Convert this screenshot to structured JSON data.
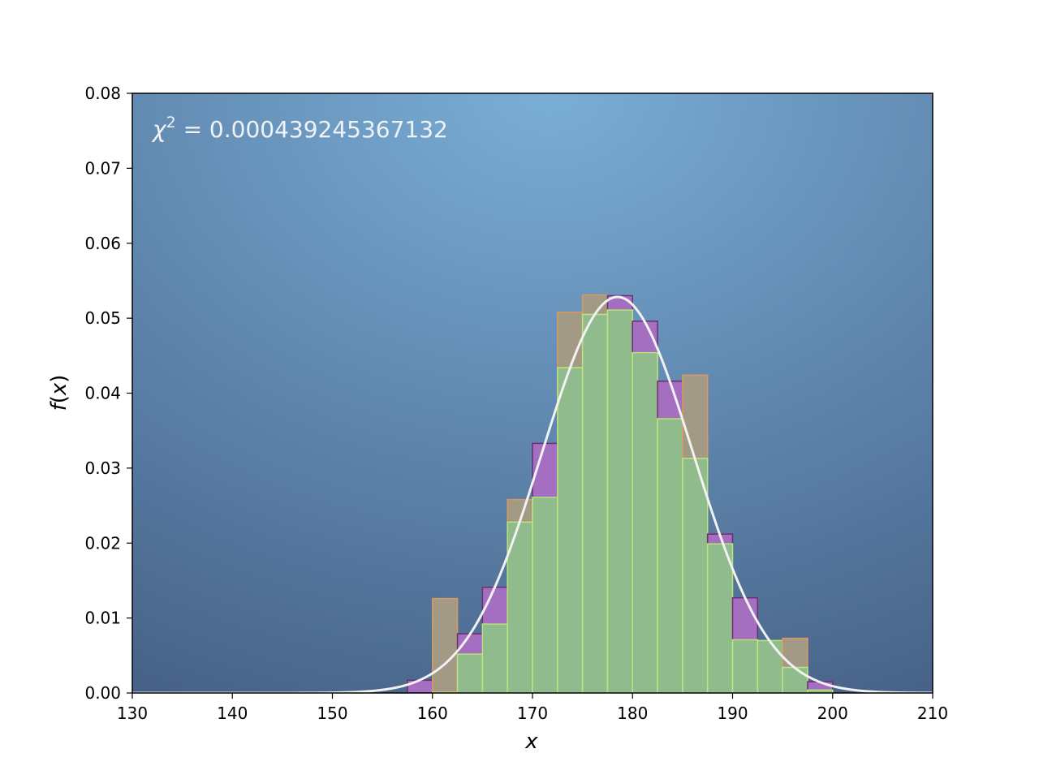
{
  "chart_data": {
    "type": "bar",
    "title": "",
    "annotation": {
      "prefix": "χ",
      "superscript": "2",
      "value_text": " = 0.000439245367132"
    },
    "xlabel": "x",
    "ylabel": {
      "func": "f",
      "paren_open": "(",
      "var": "x",
      "paren_close": ")"
    },
    "xlim": [
      130,
      210
    ],
    "ylim": [
      0,
      0.08
    ],
    "xticks": [
      130,
      140,
      150,
      160,
      170,
      180,
      190,
      200,
      210
    ],
    "xtick_labels": [
      "130",
      "140",
      "150",
      "160",
      "170",
      "180",
      "190",
      "200",
      "210"
    ],
    "yticks": [
      0,
      0.01,
      0.02,
      0.03,
      0.04,
      0.05,
      0.06,
      0.07,
      0.08
    ],
    "ytick_labels": [
      "0.00",
      "0.01",
      "0.02",
      "0.03",
      "0.04",
      "0.05",
      "0.06",
      "0.07",
      "0.08"
    ],
    "bin_edges": [
      157.5,
      160,
      162.5,
      165,
      167.5,
      170,
      172.5,
      175,
      177.5,
      180,
      182.5,
      185,
      187.5,
      190,
      192.5,
      195,
      197.5,
      200
    ],
    "series": [
      {
        "color": "#a46ec1",
        "edge": "#6b2f6e",
        "values": [
          0.0017,
          0.0001,
          0.0079,
          0.0141,
          0.0228,
          0.0333,
          0.0434,
          0.0505,
          0.053,
          0.0496,
          0.0416,
          0.0313,
          0.0212,
          0.0127,
          0.007,
          0.0034,
          0.0015
        ]
      },
      {
        "color": "#a39a86",
        "edge": "#d99a5e",
        "values": [
          0.0,
          0.0126,
          0.0052,
          0.0092,
          0.0258,
          0.0261,
          0.0508,
          0.0531,
          0.0511,
          0.0454,
          0.0366,
          0.0424,
          0.0199,
          0.0071,
          0.007,
          0.0073,
          0.0004
        ]
      }
    ],
    "overlap": {
      "color": "#8fbb8d",
      "edge": "#bde57c"
    },
    "curve": {
      "mean": 178.5,
      "sd": 7.55,
      "color": "#f2f2f2"
    },
    "background": {
      "center": "#7aaed6",
      "edge": "#455f85"
    },
    "grid": false,
    "legend": "none"
  }
}
